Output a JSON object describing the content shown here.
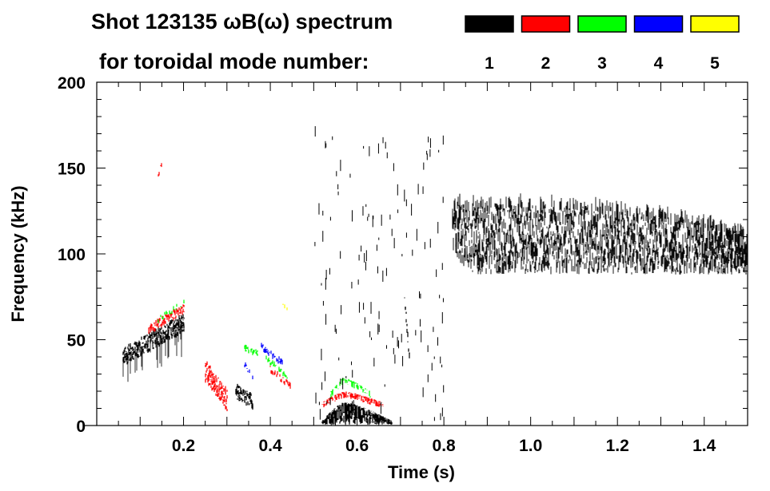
{
  "chart_data": {
    "type": "heatmap",
    "title_line1": "Shot 123135 ωB(ω) spectrum",
    "title_line2": "for toroidal mode number:",
    "xlabel": "Time (s)",
    "ylabel": "Frequency (kHz)",
    "xlim": [
      0,
      1.5
    ],
    "ylim": [
      0,
      200
    ],
    "xticks": [
      0.2,
      0.4,
      0.6,
      0.8,
      1.0,
      1.2,
      1.4
    ],
    "xtick_labels": [
      "0.2",
      "0.4",
      "0.6",
      "0.8",
      "1.0",
      "1.2",
      "1.4"
    ],
    "yticks": [
      0,
      50,
      100,
      150,
      200
    ],
    "ytick_labels": [
      "0",
      "50",
      "100",
      "150",
      "200"
    ],
    "x_minor_step": 0.05,
    "y_minor_step": 10,
    "grid": false,
    "legend": {
      "placement": "top-right",
      "entries": [
        {
          "label": "1",
          "color": "#000000"
        },
        {
          "label": "2",
          "color": "#ff0000"
        },
        {
          "label": "3",
          "color": "#00ff00"
        },
        {
          "label": "4",
          "color": "#0000ff"
        },
        {
          "label": "5",
          "color": "#ffff00"
        }
      ]
    },
    "mode_features": [
      {
        "mode": 1,
        "kind": "chirp",
        "t": [
          0.06,
          0.2
        ],
        "f": [
          40,
          60
        ],
        "width": 10,
        "tail": 20,
        "density": 0.9
      },
      {
        "mode": 2,
        "kind": "chirp",
        "t": [
          0.12,
          0.2
        ],
        "f": [
          56,
          68
        ],
        "width": 5,
        "tail": 0,
        "density": 0.8
      },
      {
        "mode": 3,
        "kind": "chirp",
        "t": [
          0.14,
          0.2
        ],
        "f": [
          62,
          71
        ],
        "width": 3,
        "tail": 0,
        "density": 0.3
      },
      {
        "mode": 2,
        "kind": "chirp",
        "t": [
          0.14,
          0.15
        ],
        "f": [
          146,
          152
        ],
        "width": 4,
        "tail": 0,
        "density": 0.6
      },
      {
        "mode": 2,
        "kind": "chirp",
        "t": [
          0.25,
          0.3
        ],
        "f": [
          32,
          15
        ],
        "width": 12,
        "tail": 0,
        "density": 0.85
      },
      {
        "mode": 1,
        "kind": "chirp",
        "t": [
          0.32,
          0.36
        ],
        "f": [
          20,
          14
        ],
        "width": 8,
        "tail": 0,
        "density": 0.9
      },
      {
        "mode": 3,
        "kind": "chirp",
        "t": [
          0.34,
          0.37
        ],
        "f": [
          45,
          42
        ],
        "width": 3,
        "tail": 0,
        "density": 0.6
      },
      {
        "mode": 4,
        "kind": "chirp",
        "t": [
          0.34,
          0.36
        ],
        "f": [
          35,
          28
        ],
        "width": 3,
        "tail": 0,
        "density": 0.5
      },
      {
        "mode": 4,
        "kind": "chirp",
        "t": [
          0.38,
          0.43
        ],
        "f": [
          46,
          36
        ],
        "width": 3,
        "tail": 0,
        "density": 0.6
      },
      {
        "mode": 3,
        "kind": "chirp",
        "t": [
          0.39,
          0.44
        ],
        "f": [
          39,
          28
        ],
        "width": 3,
        "tail": 0,
        "density": 0.5
      },
      {
        "mode": 2,
        "kind": "chirp",
        "t": [
          0.4,
          0.45
        ],
        "f": [
          33,
          22
        ],
        "width": 3,
        "tail": 0,
        "density": 0.5
      },
      {
        "mode": 5,
        "kind": "chirp",
        "t": [
          0.43,
          0.45
        ],
        "f": [
          70,
          65
        ],
        "width": 2,
        "tail": 0,
        "density": 0.3
      },
      {
        "mode": 1,
        "kind": "dome",
        "t": [
          0.52,
          0.68
        ],
        "f": [
          0,
          14
        ],
        "peak_t": 0.57,
        "density": 0.9
      },
      {
        "mode": 2,
        "kind": "dome",
        "t": [
          0.52,
          0.66
        ],
        "f": [
          12,
          20
        ],
        "peak_t": 0.57,
        "density": 0.6
      },
      {
        "mode": 3,
        "kind": "dome",
        "t": [
          0.54,
          0.63
        ],
        "f": [
          18,
          28
        ],
        "peak_t": 0.57,
        "density": 0.35
      },
      {
        "mode": 1,
        "kind": "chirp",
        "t": [
          0.71,
          0.72
        ],
        "f": [
          75,
          40
        ],
        "width": 6,
        "tail": 0,
        "density": 0.9
      },
      {
        "mode": 1,
        "kind": "band",
        "t": [
          0.82,
          1.5
        ],
        "f_low": [
          100,
          88
        ],
        "f_high": [
          128,
          110
        ],
        "density": 0.55
      }
    ],
    "scatter_streaks": {
      "mode": 1,
      "t": [
        0.5,
        0.8
      ],
      "f": [
        0,
        200
      ],
      "count": 140
    }
  }
}
